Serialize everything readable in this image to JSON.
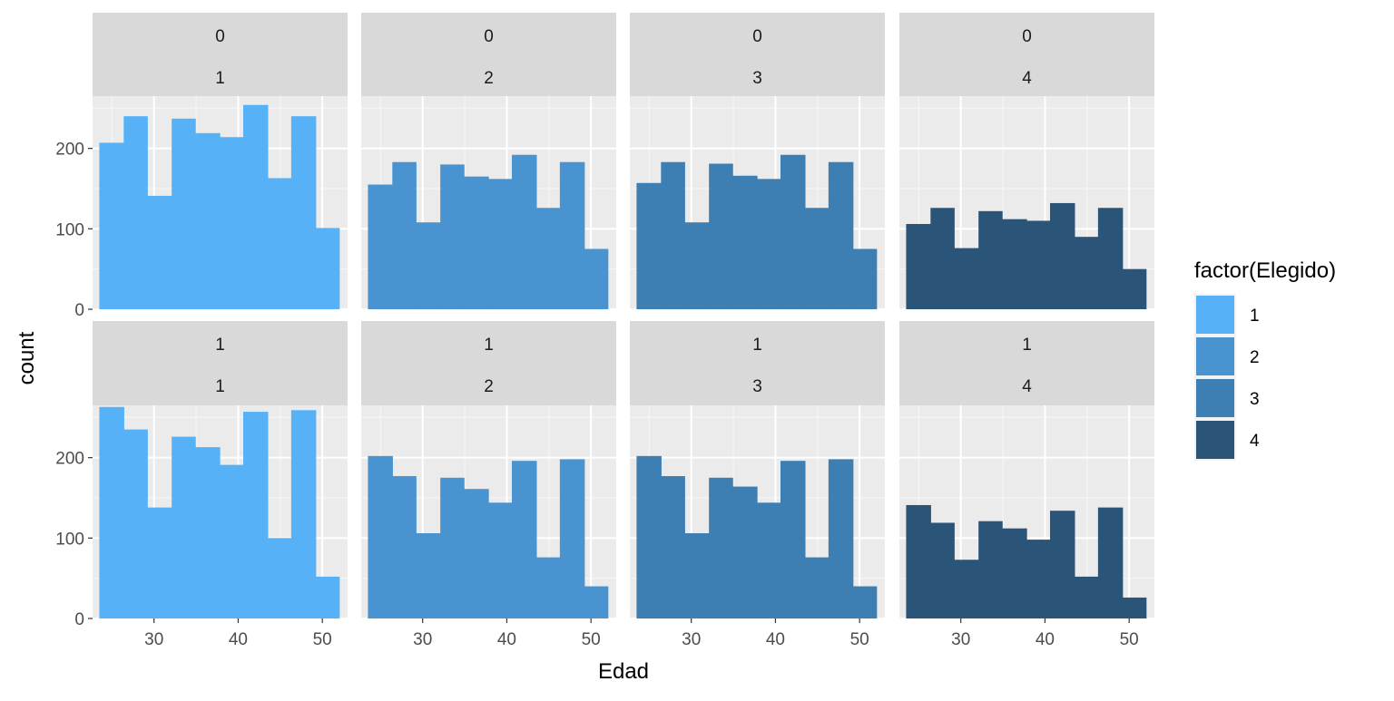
{
  "chart_data": {
    "type": "bar",
    "subtype": "faceted-histogram",
    "xlabel": "Edad",
    "ylabel": "count",
    "xlim": [
      22.7,
      53.0
    ],
    "ylim": [
      0,
      265
    ],
    "xticks": [
      30,
      40,
      50
    ],
    "yticks": [
      0,
      100,
      200
    ],
    "bin_edges": [
      23.5,
      26.4,
      29.2,
      32.1,
      34.9,
      37.8,
      40.6,
      43.5,
      46.3,
      49.2,
      52.0
    ],
    "grid": true,
    "legend": {
      "title": "factor(Elegido)",
      "position": "right",
      "entries": [
        {
          "label": "1",
          "color": "#56B1F7"
        },
        {
          "label": "2",
          "color": "#4893D0"
        },
        {
          "label": "3",
          "color": "#3D7EB3"
        },
        {
          "label": "4",
          "color": "#2A5478"
        }
      ]
    },
    "panels": [
      {
        "strip_top": "0",
        "strip_bottom": "1",
        "fill_level": 1,
        "values": [
          207,
          240,
          141,
          237,
          219,
          214,
          254,
          163,
          240,
          101
        ]
      },
      {
        "strip_top": "0",
        "strip_bottom": "2",
        "fill_level": 2,
        "values": [
          155,
          183,
          108,
          180,
          165,
          162,
          192,
          126,
          183,
          75
        ]
      },
      {
        "strip_top": "0",
        "strip_bottom": "3",
        "fill_level": 3,
        "values": [
          157,
          183,
          108,
          181,
          166,
          162,
          192,
          126,
          183,
          75
        ]
      },
      {
        "strip_top": "0",
        "strip_bottom": "4",
        "fill_level": 4,
        "values": [
          106,
          126,
          76,
          122,
          112,
          110,
          132,
          90,
          126,
          50
        ]
      },
      {
        "strip_top": "1",
        "strip_bottom": "1",
        "fill_level": 1,
        "values": [
          263,
          235,
          138,
          226,
          213,
          191,
          257,
          100,
          259,
          52
        ]
      },
      {
        "strip_top": "1",
        "strip_bottom": "2",
        "fill_level": 2,
        "values": [
          202,
          177,
          106,
          175,
          161,
          144,
          196,
          76,
          198,
          40
        ]
      },
      {
        "strip_top": "1",
        "strip_bottom": "3",
        "fill_level": 3,
        "values": [
          202,
          177,
          106,
          175,
          164,
          144,
          196,
          76,
          198,
          40
        ]
      },
      {
        "strip_top": "1",
        "strip_bottom": "4",
        "fill_level": 4,
        "values": [
          141,
          119,
          73,
          121,
          112,
          98,
          134,
          52,
          138,
          26
        ]
      }
    ]
  }
}
